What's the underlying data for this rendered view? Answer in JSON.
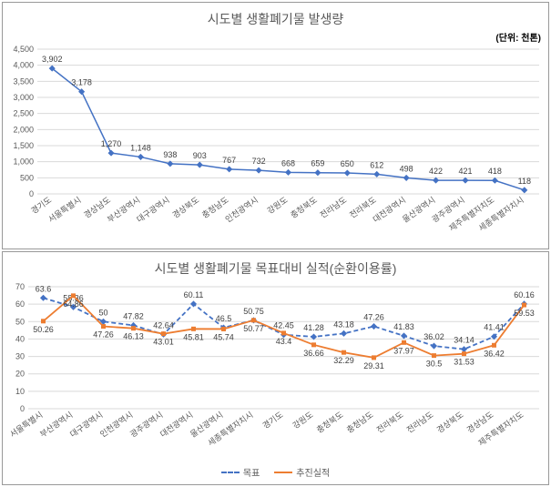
{
  "chart1": {
    "title": "시도별 생활폐기물 발생량",
    "unit": "(단위: 천톤)",
    "type": "line",
    "categories": [
      "경기도",
      "서울특별시",
      "경상남도",
      "부산광역시",
      "대구광역시",
      "경상북도",
      "충청남도",
      "인천광역시",
      "강원도",
      "충청북도",
      "전라남도",
      "전라북도",
      "대전광역시",
      "울산광역시",
      "광주광역시",
      "제주특별자치도",
      "세종특별자치시"
    ],
    "values": [
      3902,
      3178,
      1270,
      1148,
      938,
      903,
      767,
      732,
      668,
      659,
      650,
      612,
      498,
      422,
      421,
      418,
      118
    ],
    "line_color": "#4472c4",
    "marker_color": "#4472c4",
    "ylim": [
      0,
      4500
    ],
    "ytick_step": 500,
    "grid_color": "#d9d9d9",
    "background": "#ffffff",
    "label_fontsize": 9,
    "title_fontsize": 14
  },
  "chart2": {
    "title": "시도별 생활폐기물 목표대비 실적(순환이용률)",
    "type": "line-multi",
    "categories": [
      "서울특별시",
      "부산광역시",
      "대구광역시",
      "인천광역시",
      "광주광역시",
      "대전광역시",
      "울산광역시",
      "세종특별자치시",
      "경기도",
      "강원도",
      "충청북도",
      "충청남도",
      "전라북도",
      "전라남도",
      "경상북도",
      "경상남도",
      "제주특별자치도"
    ],
    "series": [
      {
        "name": "목표",
        "color": "#4472c4",
        "dash": "5,3",
        "marker": "diamond",
        "values": [
          63.6,
          58.36,
          50,
          47.82,
          42.64,
          60.11,
          46.5,
          50.75,
          42.45,
          41.28,
          43.18,
          47.26,
          41.83,
          36.02,
          34.14,
          41.41,
          60.16
        ]
      },
      {
        "name": "추진실적",
        "color": "#ed7d31",
        "dash": "none",
        "marker": "square",
        "values": [
          50.26,
          64.86,
          47.26,
          46.13,
          43.01,
          45.81,
          45.74,
          50.77,
          43.4,
          36.66,
          32.29,
          29.31,
          37.97,
          30.5,
          31.53,
          36.42,
          59.53
        ]
      }
    ],
    "ylim": [
      0,
      70
    ],
    "ytick_step": 10,
    "grid_color": "#d9d9d9",
    "background": "#ffffff",
    "legend": {
      "items": [
        "목표",
        "추진실적"
      ]
    },
    "label_fontsize": 9,
    "title_fontsize": 14
  }
}
